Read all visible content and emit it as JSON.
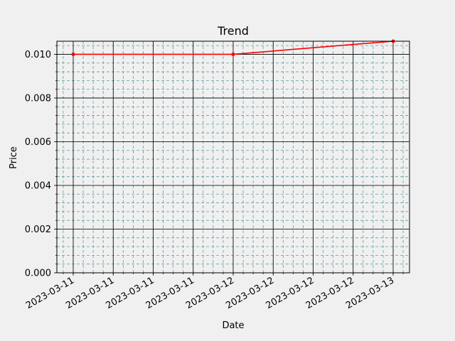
{
  "chart_data": {
    "type": "line",
    "title": "Trend",
    "xlabel": "Date",
    "ylabel": "Price",
    "x": [
      "2023-03-11",
      "2023-03-12",
      "2023-03-13"
    ],
    "series": [
      {
        "values": [
          0.01,
          0.01,
          0.0106
        ],
        "color": "#ff0000"
      }
    ],
    "ylim": [
      0,
      0.0106
    ],
    "y_ticks": [
      0.0,
      0.002,
      0.004,
      0.006,
      0.008,
      0.01
    ],
    "y_tick_labels": [
      "0.000",
      "0.002",
      "0.004",
      "0.006",
      "0.008",
      "0.010"
    ],
    "x_tick_labels": [
      "2023-03-11",
      "2023-03-11",
      "2023-03-11",
      "2023-03-11",
      "2023-03-12",
      "2023-03-12",
      "2023-03-12",
      "2023-03-12",
      "2023-03-13"
    ],
    "grid": {
      "major": true,
      "minor": true,
      "major_color": "#000000",
      "minor_color": "#5f9ea0"
    },
    "background_color": "#f0f0f0",
    "plot_background_color": "#f0f0f0"
  }
}
